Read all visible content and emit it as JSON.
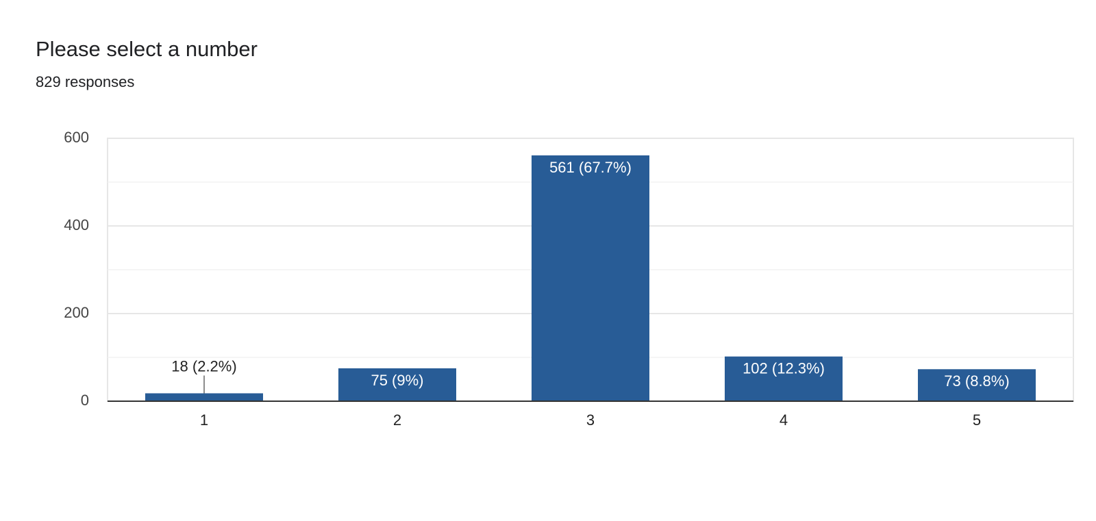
{
  "chart_data": {
    "type": "bar",
    "title": "Please select a number",
    "subtitle": "829 responses",
    "categories": [
      "1",
      "2",
      "3",
      "4",
      "5"
    ],
    "values": [
      18,
      75,
      561,
      102,
      73
    ],
    "value_labels": [
      "18 (2.2%)",
      "75 (9%)",
      "561 (67.7%)",
      "102 (12.3%)",
      "73 (8.8%)"
    ],
    "color": "#285c96",
    "ylim": [
      0,
      600
    ],
    "yticks": [
      0,
      200,
      400,
      600
    ],
    "minor_yticks": [
      100,
      300,
      500
    ],
    "grid": true
  }
}
